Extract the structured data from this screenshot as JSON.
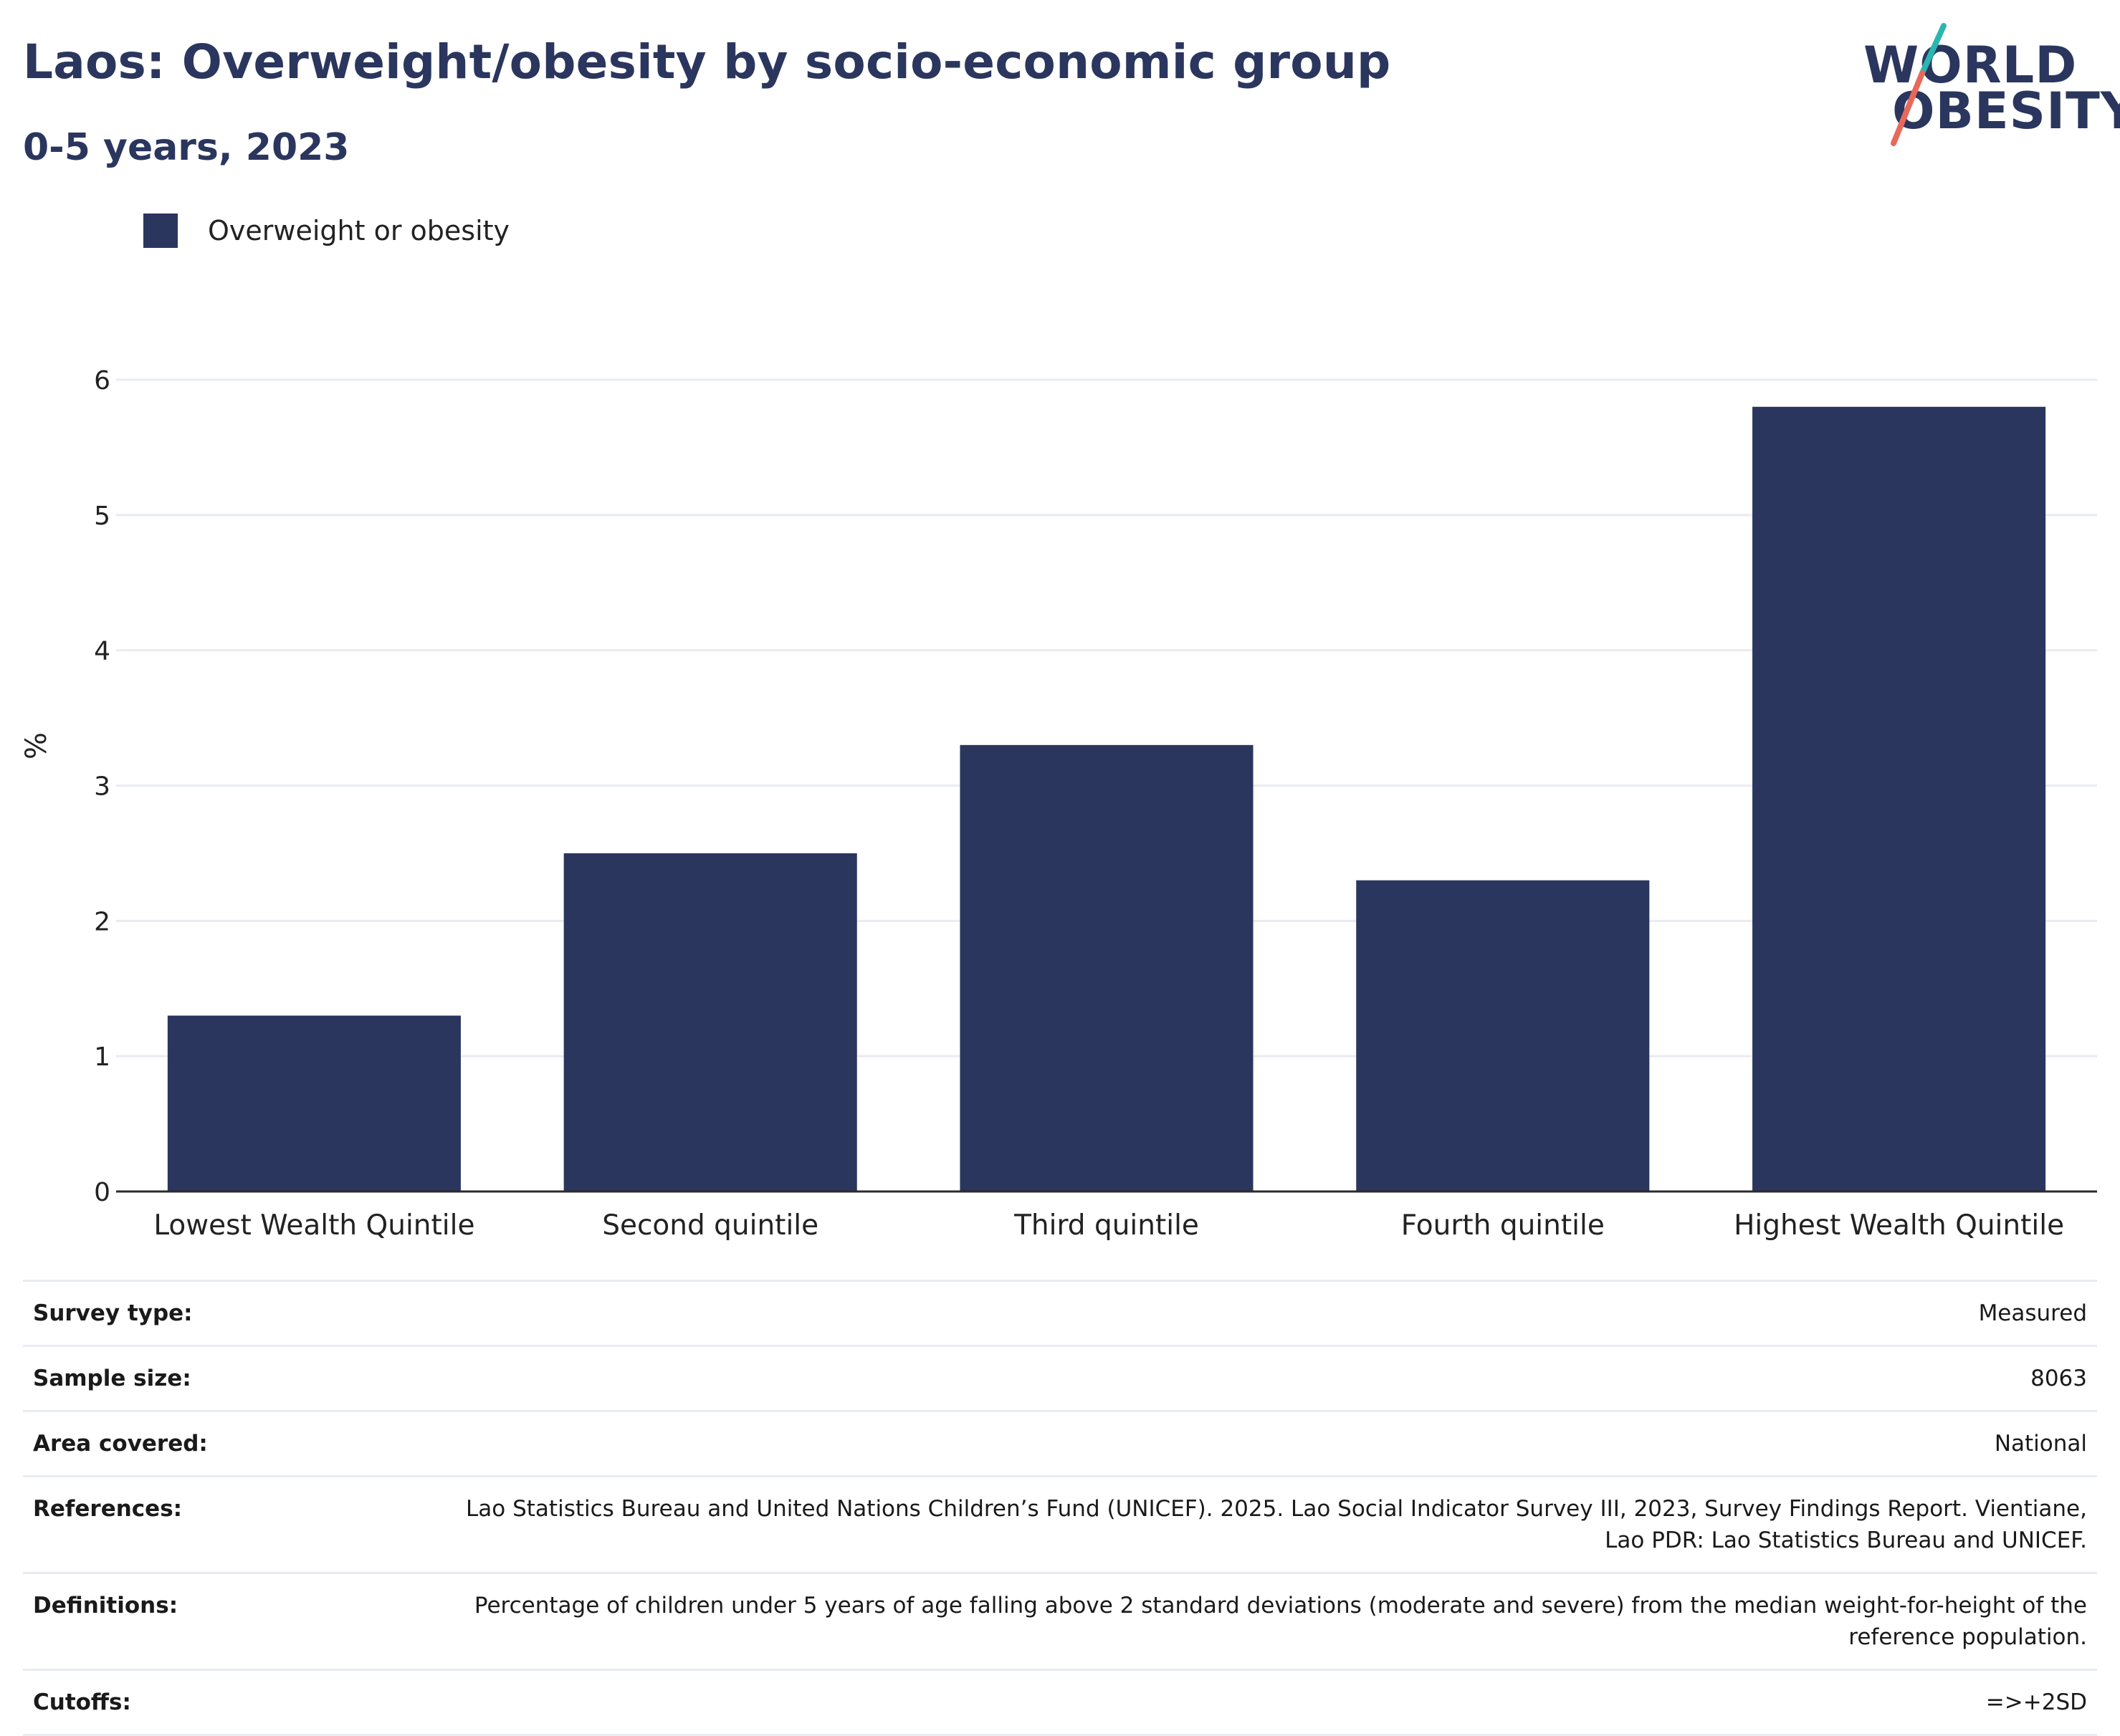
{
  "header": {
    "title": "Laos: Overweight/obesity by socio-economic group",
    "subtitle": "0-5 years, 2023"
  },
  "logo": {
    "line1": "WORLD",
    "line2": "OBESITY",
    "slash_colors": [
      "#2ab7b0",
      "#e8685a"
    ]
  },
  "legend": {
    "label": "Overweight or obesity"
  },
  "colors": {
    "bar": "#2b365e",
    "text": "#2b365e",
    "grid": "#e8ecf2",
    "axis": "#2b2b2b"
  },
  "chart_data": {
    "type": "bar",
    "categories": [
      "Lowest Wealth Quintile",
      "Second quintile",
      "Third quintile",
      "Fourth quintile",
      "Highest Wealth Quintile"
    ],
    "series": [
      {
        "name": "Overweight or obesity",
        "values": [
          1.3,
          2.5,
          3.3,
          2.3,
          5.8
        ]
      }
    ],
    "ylabel": "%",
    "ylim": [
      0,
      6
    ],
    "yticks": [
      0,
      1,
      2,
      3,
      4,
      5,
      6
    ],
    "grid": true,
    "legend_position": "top-left"
  },
  "info": [
    {
      "key": "Survey type:",
      "value": "Measured"
    },
    {
      "key": "Sample size:",
      "value": "8063"
    },
    {
      "key": "Area covered:",
      "value": "National"
    },
    {
      "key": "References:",
      "value": "Lao Statistics Bureau and United Nations Children’s Fund (UNICEF). 2025. Lao Social Indicator Survey III, 2023, Survey Findings Report. Vientiane, Lao PDR: Lao Statistics Bureau and UNICEF."
    },
    {
      "key": "Definitions:",
      "value": "Percentage of children under 5 years of age falling above 2 standard deviations (moderate and severe) from the median weight-for-height of the reference population."
    },
    {
      "key": "Cutoffs:",
      "value": "=>+2SD"
    }
  ]
}
